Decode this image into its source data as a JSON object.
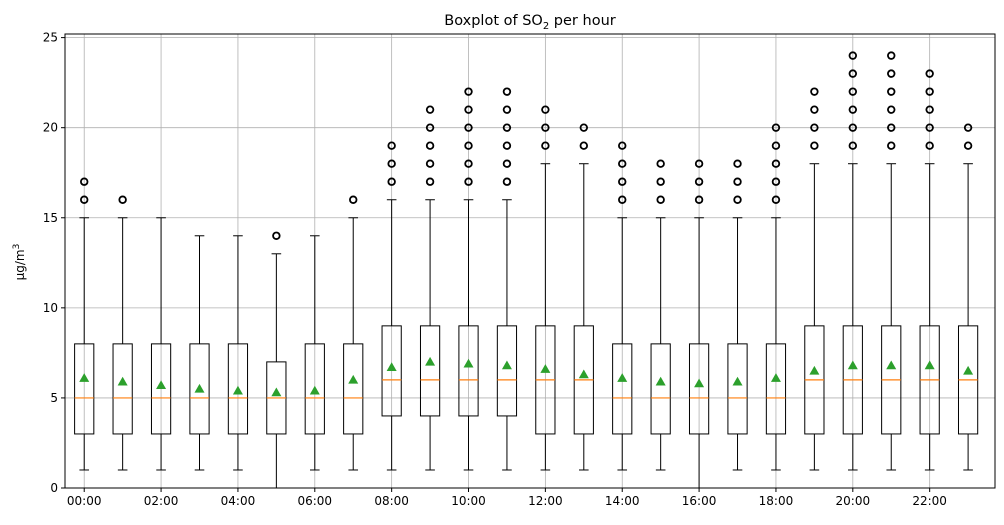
{
  "chart_data": {
    "type": "boxplot",
    "title_main": "Boxplot of SO",
    "title_sub": "2",
    "title_rest": " per hour",
    "ylabel_main": "µg/m",
    "ylabel_sup": "3",
    "ylim": [
      0,
      25.2
    ],
    "yticks": [
      0,
      5,
      10,
      15,
      20,
      25
    ],
    "xtick_labels": [
      "00:00",
      "02:00",
      "04:00",
      "06:00",
      "08:00",
      "10:00",
      "12:00",
      "14:00",
      "16:00",
      "18:00",
      "20:00",
      "22:00"
    ],
    "grid": true,
    "colors": {
      "box": "#000000",
      "median": "#ff7f0e",
      "mean": "#2ca02c",
      "grid": "#b0b0b0"
    },
    "boxes": [
      {
        "hour": "00:00",
        "whislo": 1,
        "q1": 3,
        "med": 5,
        "q3": 8,
        "whishi": 15,
        "mean": 6.1,
        "fliers": [
          16,
          17
        ]
      },
      {
        "hour": "01:00",
        "whislo": 1,
        "q1": 3,
        "med": 5,
        "q3": 8,
        "whishi": 15,
        "mean": 5.9,
        "fliers": [
          16
        ]
      },
      {
        "hour": "02:00",
        "whislo": 1,
        "q1": 3,
        "med": 5,
        "q3": 8,
        "whishi": 15,
        "mean": 5.7,
        "fliers": []
      },
      {
        "hour": "03:00",
        "whislo": 1,
        "q1": 3,
        "med": 5,
        "q3": 8,
        "whishi": 14,
        "mean": 5.5,
        "fliers": []
      },
      {
        "hour": "04:00",
        "whislo": 1,
        "q1": 3,
        "med": 5,
        "q3": 8,
        "whishi": 14,
        "mean": 5.4,
        "fliers": []
      },
      {
        "hour": "05:00",
        "whislo": 0,
        "q1": 3,
        "med": 5,
        "q3": 7,
        "whishi": 13,
        "mean": 5.3,
        "fliers": [
          14
        ]
      },
      {
        "hour": "06:00",
        "whislo": 1,
        "q1": 3,
        "med": 5,
        "q3": 8,
        "whishi": 14,
        "mean": 5.4,
        "fliers": []
      },
      {
        "hour": "07:00",
        "whislo": 1,
        "q1": 3,
        "med": 5,
        "q3": 8,
        "whishi": 15,
        "mean": 6.0,
        "fliers": [
          16
        ]
      },
      {
        "hour": "08:00",
        "whislo": 1,
        "q1": 4,
        "med": 6,
        "q3": 9,
        "whishi": 16,
        "mean": 6.7,
        "fliers": [
          17,
          18,
          19
        ]
      },
      {
        "hour": "09:00",
        "whislo": 1,
        "q1": 4,
        "med": 6,
        "q3": 9,
        "whishi": 16,
        "mean": 7.0,
        "fliers": [
          17,
          18,
          19,
          20,
          21
        ]
      },
      {
        "hour": "10:00",
        "whislo": 1,
        "q1": 4,
        "med": 6,
        "q3": 9,
        "whishi": 16,
        "mean": 6.9,
        "fliers": [
          17,
          18,
          19,
          20,
          21,
          22
        ]
      },
      {
        "hour": "11:00",
        "whislo": 1,
        "q1": 4,
        "med": 6,
        "q3": 9,
        "whishi": 16,
        "mean": 6.8,
        "fliers": [
          17,
          18,
          19,
          20,
          21,
          22
        ]
      },
      {
        "hour": "12:00",
        "whislo": 1,
        "q1": 3,
        "med": 6,
        "q3": 9,
        "whishi": 18,
        "mean": 6.6,
        "fliers": [
          19,
          20,
          21
        ]
      },
      {
        "hour": "13:00",
        "whislo": 1,
        "q1": 3,
        "med": 6,
        "q3": 9,
        "whishi": 18,
        "mean": 6.3,
        "fliers": [
          19,
          20
        ]
      },
      {
        "hour": "14:00",
        "whislo": 1,
        "q1": 3,
        "med": 5,
        "q3": 8,
        "whishi": 15,
        "mean": 6.1,
        "fliers": [
          16,
          17,
          18,
          19
        ]
      },
      {
        "hour": "15:00",
        "whislo": 1,
        "q1": 3,
        "med": 5,
        "q3": 8,
        "whishi": 15,
        "mean": 5.9,
        "fliers": [
          16,
          17,
          18
        ]
      },
      {
        "hour": "16:00",
        "whislo": 0,
        "q1": 3,
        "med": 5,
        "q3": 8,
        "whishi": 15,
        "mean": 5.8,
        "fliers": [
          16,
          17,
          18
        ]
      },
      {
        "hour": "17:00",
        "whislo": 1,
        "q1": 3,
        "med": 5,
        "q3": 8,
        "whishi": 15,
        "mean": 5.9,
        "fliers": [
          16,
          17,
          18
        ]
      },
      {
        "hour": "18:00",
        "whislo": 1,
        "q1": 3,
        "med": 5,
        "q3": 8,
        "whishi": 15,
        "mean": 6.1,
        "fliers": [
          16,
          17,
          18,
          19,
          20
        ]
      },
      {
        "hour": "19:00",
        "whislo": 1,
        "q1": 3,
        "med": 6,
        "q3": 9,
        "whishi": 18,
        "mean": 6.5,
        "fliers": [
          19,
          20,
          21,
          22
        ]
      },
      {
        "hour": "20:00",
        "whislo": 1,
        "q1": 3,
        "med": 6,
        "q3": 9,
        "whishi": 18,
        "mean": 6.8,
        "fliers": [
          19,
          20,
          21,
          22,
          23,
          24
        ]
      },
      {
        "hour": "21:00",
        "whislo": 1,
        "q1": 3,
        "med": 6,
        "q3": 9,
        "whishi": 18,
        "mean": 6.8,
        "fliers": [
          19,
          20,
          21,
          22,
          23,
          24
        ]
      },
      {
        "hour": "22:00",
        "whislo": 1,
        "q1": 3,
        "med": 6,
        "q3": 9,
        "whishi": 18,
        "mean": 6.8,
        "fliers": [
          19,
          20,
          21,
          22,
          23
        ]
      },
      {
        "hour": "23:00",
        "whislo": 1,
        "q1": 3,
        "med": 6,
        "q3": 9,
        "whishi": 18,
        "mean": 6.5,
        "fliers": [
          19,
          20
        ]
      }
    ]
  }
}
